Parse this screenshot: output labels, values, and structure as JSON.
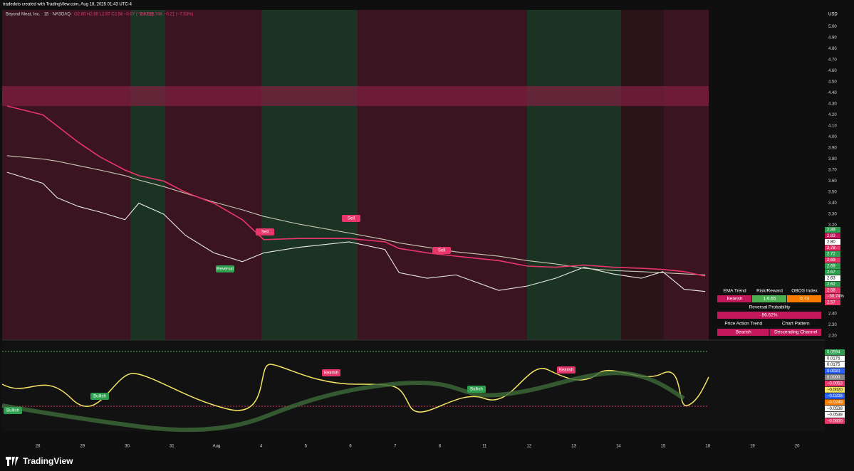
{
  "header": {
    "credit": "tradedots created with TradingView.com, Aug 18, 2025 01:43 UTC-4",
    "ohlc": "O2.65 H2.65 L2.57 C2.58 −0.07 (−2.92%)",
    "volume": "Vol 129.74K −0.21 (−7.53%)",
    "currency": "USD"
  },
  "chart_data": {
    "type": "line",
    "title": "Beyond Meat, Inc. · 15 · NASDAQ",
    "x": [
      -0.69,
      0.11,
      0.43,
      0.91,
      1.39,
      1.95,
      2.26,
      2.82,
      3.3,
      3.94,
      4.58,
      5.06,
      5.85,
      6.97,
      7.77,
      8.09,
      8.72,
      9.36,
      10.32,
      10.96,
      11.59,
      12.23,
      12.87,
      13.51,
      13.99,
      14.47,
      14.94
    ],
    "series": [
      {
        "color": "#e9e9e9",
        "values": [
          3.68,
          3.58,
          3.45,
          3.37,
          3.32,
          3.25,
          3.4,
          3.3,
          3.11,
          2.95,
          2.87,
          2.95,
          3.0,
          3.05,
          2.98,
          2.77,
          2.72,
          2.75,
          2.61,
          2.65,
          2.72,
          2.82,
          2.76,
          2.72,
          2.78,
          2.62,
          2.6
        ]
      },
      {
        "color": "#c9c9b5",
        "values": [
          3.83,
          3.8,
          3.78,
          3.74,
          3.7,
          3.65,
          3.61,
          3.55,
          3.49,
          3.41,
          3.34,
          3.28,
          3.21,
          3.13,
          3.07,
          3.04,
          3.0,
          2.96,
          2.92,
          2.88,
          2.85,
          2.81,
          2.79,
          2.78,
          2.77,
          2.76,
          2.75
        ]
      },
      {
        "color": "#e8366b",
        "values": [
          4.28,
          4.2,
          4.1,
          3.95,
          3.82,
          3.7,
          3.65,
          3.6,
          3.5,
          3.4,
          3.25,
          3.07,
          3.08,
          3.08,
          3.05,
          2.99,
          2.95,
          2.92,
          2.88,
          2.83,
          2.82,
          2.84,
          2.82,
          2.81,
          2.8,
          2.78,
          2.74
        ]
      }
    ],
    "xlim": [
      -0.8,
      17.62
    ],
    "xticks": [
      {
        "value": 0,
        "label": "28"
      },
      {
        "value": 1,
        "label": "29"
      },
      {
        "value": 2,
        "label": "30"
      },
      {
        "value": 3,
        "label": "31"
      },
      {
        "value": 4,
        "label": "Aug"
      },
      {
        "value": 5,
        "label": "4"
      },
      {
        "value": 6,
        "label": "5"
      },
      {
        "value": 7,
        "label": "6"
      },
      {
        "value": 8,
        "label": "7"
      },
      {
        "value": 9,
        "label": "8"
      },
      {
        "value": 10,
        "label": "11"
      },
      {
        "value": 11,
        "label": "12"
      },
      {
        "value": 12,
        "label": "13"
      },
      {
        "value": 13,
        "label": "14"
      },
      {
        "value": 14,
        "label": "15"
      },
      {
        "value": 15,
        "label": "18"
      },
      {
        "value": 16,
        "label": "19"
      },
      {
        "value": 17,
        "label": "20"
      }
    ],
    "ylim": [
      2.16,
      5.15
    ],
    "yticks": [
      {
        "value": 2.2,
        "label": "2.20"
      },
      {
        "value": 2.3,
        "label": "2.30"
      },
      {
        "value": 2.4,
        "label": "2.40"
      },
      {
        "value": 2.5,
        "label": "2.50"
      },
      {
        "value": 3.1,
        "label": "3.10"
      },
      {
        "value": 3.2,
        "label": "3.20"
      },
      {
        "value": 3.3,
        "label": "3.30"
      },
      {
        "value": 3.4,
        "label": "3.40"
      },
      {
        "value": 3.5,
        "label": "3.50"
      },
      {
        "value": 3.6,
        "label": "3.60"
      },
      {
        "value": 3.7,
        "label": "3.70"
      },
      {
        "value": 3.8,
        "label": "3.80"
      },
      {
        "value": 3.9,
        "label": "3.90"
      },
      {
        "value": 4.0,
        "label": "4.00"
      },
      {
        "value": 4.1,
        "label": "4.10"
      },
      {
        "value": 4.2,
        "label": "4.20"
      },
      {
        "value": 4.3,
        "label": "4.30"
      },
      {
        "value": 4.4,
        "label": "4.40"
      },
      {
        "value": 4.5,
        "label": "4.50"
      },
      {
        "value": 4.6,
        "label": "4.60"
      },
      {
        "value": 4.7,
        "label": "4.70"
      },
      {
        "value": 4.8,
        "label": "4.80"
      },
      {
        "value": 4.9,
        "label": "4.90"
      },
      {
        "value": 5.0,
        "label": "5.00"
      }
    ],
    "grid": false
  },
  "annotations": [
    "Sell",
    "Sell",
    "Sell",
    "Bullish",
    "Bullish",
    "Bullish",
    "Bearish",
    "Bearish",
    "Reversal"
  ],
  "price_labels": [
    {
      "text": "2.89",
      "color": "#2e9e4f"
    },
    {
      "text": "2.83",
      "color": "#c2185b"
    },
    {
      "text": "2.80",
      "color": "#ffffff"
    },
    {
      "text": "2.78",
      "color": "#e8366b"
    },
    {
      "text": "2.72",
      "color": "#2e9e4f"
    },
    {
      "text": "2.69",
      "color": "#e8366b"
    },
    {
      "text": "2.69",
      "color": "#2e9e4f"
    },
    {
      "text": "2.67",
      "color": "#2e9e4f"
    },
    {
      "text": "2.63",
      "color": "#ffffff"
    },
    {
      "text": "2.62",
      "color": "#2e9e4f"
    },
    {
      "text": "2.58",
      "color": "#e8366b"
    },
    {
      "text": "−30.74%",
      "color": "#e8366b"
    },
    {
      "text": "2.57",
      "color": "#e8366b"
    }
  ],
  "oscillator_labels": [
    {
      "text": "0.0594",
      "color": "#2e9e4f"
    },
    {
      "text": "0.0175",
      "color": "#ffffff"
    },
    {
      "text": "0.0175",
      "color": "#ffffff"
    },
    {
      "text": "0.0020",
      "color": "#2962ff"
    },
    {
      "text": "0.0000",
      "color": "#888888"
    },
    {
      "text": "−0.0053",
      "color": "#e8366b"
    },
    {
      "text": "−0.0020",
      "color": "#f5e663"
    },
    {
      "text": "−0.0228",
      "color": "#2962ff"
    },
    {
      "text": "−0.0249",
      "color": "#f57c00"
    },
    {
      "text": "−0.0538",
      "color": "#ffffff"
    },
    {
      "text": "−0.0538",
      "color": "#ffffff"
    },
    {
      "text": "−0.0600",
      "color": "#e8366b"
    }
  ],
  "table": {
    "rows": [
      [
        "EMA Trend",
        "Risk/Reward",
        "OBOS Index"
      ],
      [
        "Bearish",
        "1:6.65",
        "0.73"
      ],
      [
        "Reversal Probability"
      ],
      [
        "86.62%"
      ],
      [
        "Price Action Trend",
        "Chart Pattern"
      ],
      [
        "Bearish",
        "Descending Channel"
      ]
    ]
  },
  "footer": {
    "brand": "TradingView"
  }
}
